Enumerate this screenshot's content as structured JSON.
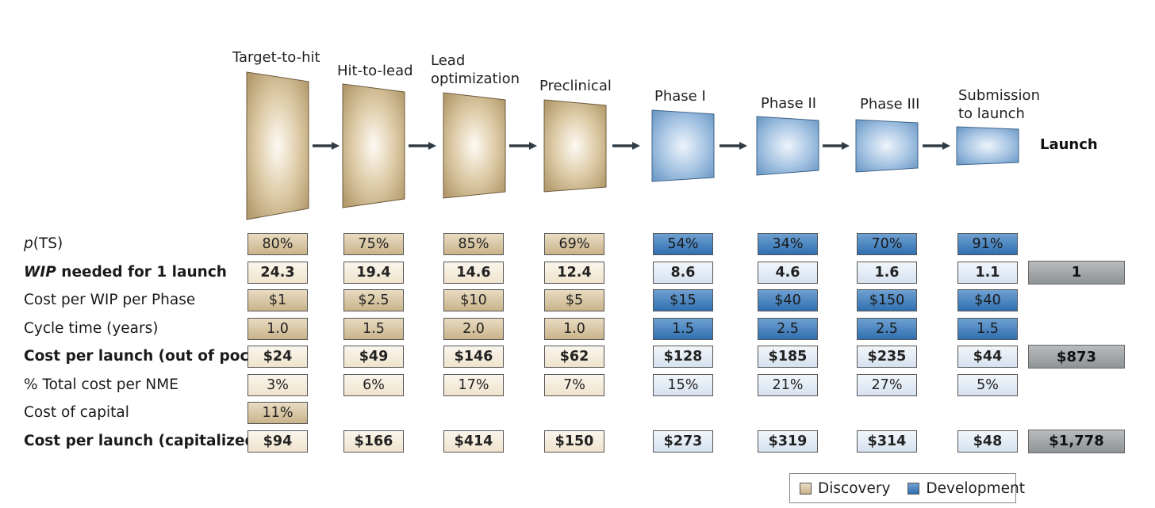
{
  "stages": [
    {
      "label": "Target-to-hit",
      "type": "discovery"
    },
    {
      "label": "Hit-to-lead",
      "type": "discovery"
    },
    {
      "label": "Lead optimization",
      "type": "discovery"
    },
    {
      "label": "Preclinical",
      "type": "discovery"
    },
    {
      "label": "Phase I",
      "type": "development"
    },
    {
      "label": "Phase II",
      "type": "development"
    },
    {
      "label": "Phase III",
      "type": "development"
    },
    {
      "label": "Submission to launch",
      "type": "development"
    }
  ],
  "launch_label": "Launch",
  "rows": [
    {
      "label_html": "<i>p</i>(TS)",
      "bold": false,
      "style": "dark",
      "values": [
        "80%",
        "75%",
        "85%",
        "69%",
        "54%",
        "34%",
        "70%",
        "91%"
      ],
      "launch": null
    },
    {
      "label_html": "<i>WIP</i> needed for 1 launch",
      "bold": true,
      "style": "light",
      "values": [
        "24.3",
        "19.4",
        "14.6",
        "12.4",
        "8.6",
        "4.6",
        "1.6",
        "1.1"
      ],
      "launch": "1"
    },
    {
      "label_html": "Cost per WIP per Phase",
      "bold": false,
      "style": "dark",
      "values": [
        "$1",
        "$2.5",
        "$10",
        "$5",
        "$15",
        "$40",
        "$150",
        "$40"
      ],
      "launch": null
    },
    {
      "label_html": "Cycle time (years)",
      "bold": false,
      "style": "dark",
      "values": [
        "1.0",
        "1.5",
        "2.0",
        "1.0",
        "1.5",
        "2.5",
        "2.5",
        "1.5"
      ],
      "launch": null
    },
    {
      "label_html": "Cost per launch (out of pocket)",
      "bold": true,
      "style": "light",
      "values": [
        "$24",
        "$49",
        "$146",
        "$62",
        "$128",
        "$185",
        "$235",
        "$44"
      ],
      "launch": "$873"
    },
    {
      "label_html": "% Total cost per NME",
      "bold": false,
      "style": "light",
      "values": [
        "3%",
        "6%",
        "17%",
        "7%",
        "15%",
        "21%",
        "27%",
        "5%"
      ],
      "launch": null
    },
    {
      "label_html": "Cost of capital",
      "bold": false,
      "style": "dark",
      "values": [
        "11%",
        null,
        null,
        null,
        null,
        null,
        null,
        null
      ],
      "launch": null
    },
    {
      "label_html": "Cost per launch (capitalized)",
      "bold": true,
      "style": "light",
      "values": [
        "$94",
        "$166",
        "$414",
        "$150",
        "$273",
        "$319",
        "$314",
        "$48"
      ],
      "launch": "$1,778"
    }
  ],
  "legend": {
    "discovery": "Discovery",
    "development": "Development"
  },
  "colors": {
    "discovery": "#c9b38a",
    "development": "#6fa1d2",
    "launch": "#9a9ea1"
  }
}
